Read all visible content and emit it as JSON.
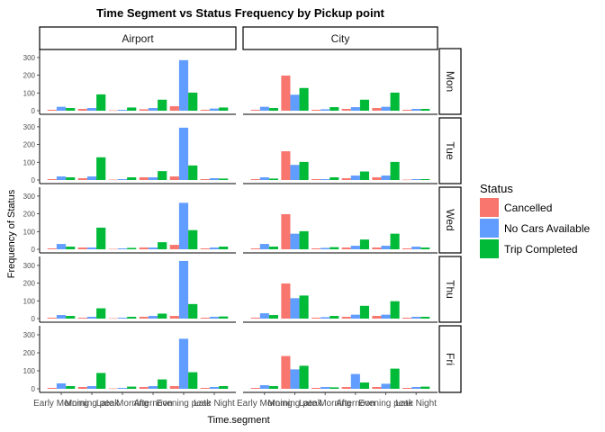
{
  "chart_data": {
    "type": "bar",
    "title": "Time Segment vs Status Frequency by Pickup point",
    "xlabel": "Time.segment",
    "ylabel": "Frequency of Status",
    "ylim": [
      0,
      340
    ],
    "yticks": [
      0,
      100,
      200,
      300
    ],
    "categories": [
      "Early Morning",
      "Morning peak",
      "Late Morning",
      "Afternoon",
      "Evening peak",
      "Late Night"
    ],
    "col_facets": [
      "Airport",
      "City"
    ],
    "row_facets": [
      "Mon",
      "Tue",
      "Wed",
      "Thu",
      "Fri"
    ],
    "legend": {
      "title": "Status",
      "placement": "right",
      "entries": [
        {
          "name": "Cancelled",
          "color": "#F8766D"
        },
        {
          "name": "No Cars Available",
          "color": "#619CFF"
        },
        {
          "name": "Trip Completed",
          "color": "#00BA38"
        }
      ]
    },
    "panels": {
      "Mon": {
        "Airport": {
          "Cancelled": [
            5,
            10,
            2,
            8,
            25,
            5
          ],
          "No Cars Available": [
            22,
            15,
            5,
            15,
            285,
            12
          ],
          "Trip Completed": [
            15,
            92,
            18,
            62,
            102,
            18
          ]
        },
        "City": {
          "Cancelled": [
            5,
            198,
            5,
            10,
            15,
            5
          ],
          "No Cars Available": [
            22,
            90,
            8,
            20,
            22,
            10
          ],
          "Trip Completed": [
            15,
            128,
            20,
            62,
            102,
            10
          ]
        }
      },
      "Tue": {
        "Airport": {
          "Cancelled": [
            5,
            10,
            2,
            15,
            20,
            5
          ],
          "No Cars Available": [
            20,
            20,
            5,
            15,
            295,
            10
          ],
          "Trip Completed": [
            15,
            128,
            15,
            50,
            82,
            8
          ]
        },
        "City": {
          "Cancelled": [
            5,
            162,
            5,
            10,
            15,
            2
          ],
          "No Cars Available": [
            15,
            85,
            5,
            25,
            25,
            5
          ],
          "Trip Completed": [
            8,
            102,
            15,
            48,
            102,
            5
          ]
        }
      },
      "Wed": {
        "Airport": {
          "Cancelled": [
            5,
            10,
            2,
            10,
            25,
            5
          ],
          "No Cars Available": [
            30,
            10,
            5,
            10,
            262,
            10
          ],
          "Trip Completed": [
            15,
            122,
            8,
            40,
            108,
            15
          ]
        },
        "City": {
          "Cancelled": [
            5,
            198,
            5,
            10,
            10,
            5
          ],
          "No Cars Available": [
            30,
            88,
            8,
            20,
            20,
            15
          ],
          "Trip Completed": [
            15,
            102,
            12,
            55,
            88,
            10
          ]
        }
      },
      "Thu": {
        "Airport": {
          "Cancelled": [
            5,
            5,
            2,
            10,
            15,
            5
          ],
          "No Cars Available": [
            20,
            10,
            5,
            15,
            325,
            10
          ],
          "Trip Completed": [
            15,
            58,
            10,
            28,
            82,
            12
          ]
        },
        "City": {
          "Cancelled": [
            5,
            198,
            5,
            10,
            15,
            5
          ],
          "No Cars Available": [
            30,
            115,
            8,
            22,
            22,
            10
          ],
          "Trip Completed": [
            20,
            130,
            15,
            72,
            98,
            10
          ]
        }
      },
      "Fri": {
        "Airport": {
          "Cancelled": [
            5,
            10,
            2,
            10,
            15,
            5
          ],
          "No Cars Available": [
            30,
            15,
            5,
            15,
            278,
            10
          ],
          "Trip Completed": [
            15,
            88,
            12,
            52,
            92,
            15
          ]
        },
        "City": {
          "Cancelled": [
            5,
            182,
            5,
            10,
            10,
            5
          ],
          "No Cars Available": [
            20,
            108,
            10,
            82,
            28,
            10
          ],
          "Trip Completed": [
            15,
            128,
            8,
            35,
            112,
            12
          ]
        }
      }
    }
  }
}
